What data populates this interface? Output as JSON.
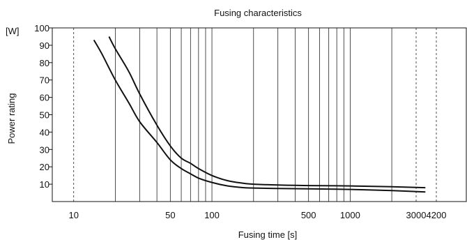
{
  "chart_data": {
    "type": "line",
    "title": "Fusing characteristics",
    "xlabel": "Fusing time [s]",
    "ylabel": "Power  rating",
    "yunit": "[W]",
    "x_scale": "log",
    "y_scale": "linear",
    "xlim": [
      7,
      7000
    ],
    "ylim": [
      0,
      100
    ],
    "x_ticks": [
      10,
      50,
      100,
      500,
      1000,
      3000,
      4200
    ],
    "x_tick_labels": [
      "10",
      "50",
      "100",
      "500",
      "1000",
      "3000",
      "4200"
    ],
    "y_ticks": [
      10,
      20,
      30,
      40,
      50,
      60,
      70,
      80,
      90,
      100
    ],
    "y_tick_labels": [
      "10",
      "20",
      "30",
      "40",
      "50",
      "60",
      "70",
      "80",
      "90",
      "100"
    ],
    "x_minor_gridlines": [
      20,
      30,
      40,
      60,
      70,
      80,
      90,
      200,
      300,
      400,
      600,
      700,
      800,
      900,
      2000
    ],
    "x_dashed_gridlines": [
      10,
      3000,
      4200
    ],
    "grid": "vertical",
    "series": [
      {
        "color": "#111111",
        "x": [
          14,
          16,
          20,
          25,
          30,
          40,
          50,
          60,
          70,
          80,
          100,
          130,
          170,
          200,
          300,
          500,
          1000,
          2000,
          3500
        ],
        "y": [
          93,
          85,
          70,
          57,
          46,
          34,
          24,
          19,
          16,
          13.5,
          11,
          9,
          8,
          7.8,
          7.5,
          7.3,
          7,
          6.3,
          5.5
        ]
      },
      {
        "color": "#111111",
        "x": [
          18,
          20,
          25,
          30,
          40,
          50,
          60,
          70,
          80,
          100,
          130,
          170,
          200,
          300,
          500,
          1000,
          2000,
          3500
        ],
        "y": [
          95,
          88,
          75,
          62,
          44,
          32,
          25,
          22,
          19,
          15,
          12,
          10.5,
          10,
          9.5,
          9.2,
          9,
          8.5,
          8
        ]
      }
    ]
  }
}
